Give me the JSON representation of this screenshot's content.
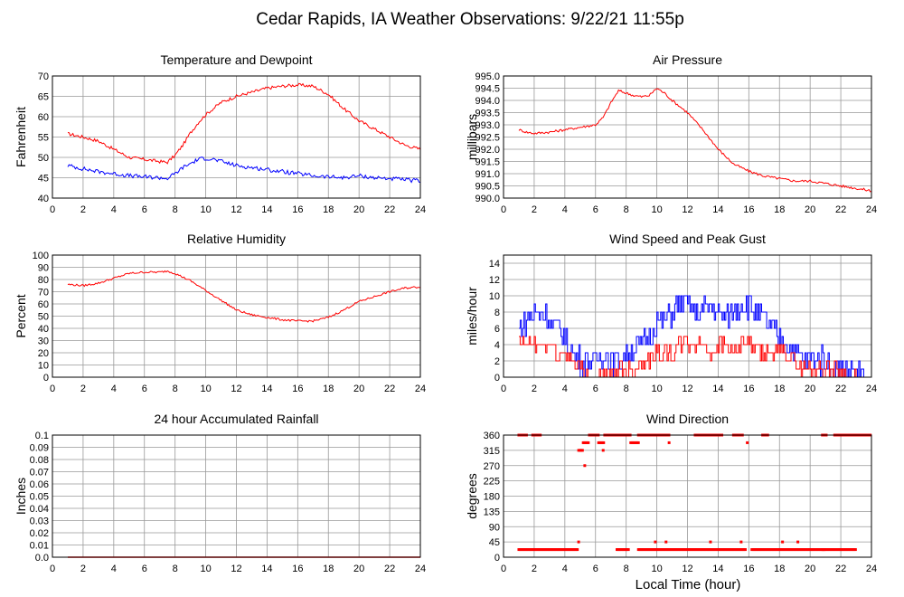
{
  "page": {
    "title": "Cedar Rapids, IA Weather Observations: 9/22/21 11:55p",
    "xaxis_label": "Local Time (hour)"
  },
  "colors": {
    "red": "#ff0000",
    "blue": "#0000ff",
    "grid": "#999999",
    "plot_bg": "#ffffff"
  },
  "chart_data": [
    {
      "id": "temp",
      "type": "line",
      "title": "Temperature and Dewpoint",
      "ylabel": "Fahrenheit",
      "xlim": [
        0,
        24
      ],
      "ylim": [
        40,
        70
      ],
      "x_ticks": [
        0,
        2,
        4,
        6,
        8,
        10,
        12,
        14,
        16,
        18,
        20,
        22,
        24
      ],
      "y_ticks": [
        40,
        45,
        50,
        55,
        60,
        65,
        70
      ],
      "y_tick_labels": [
        "40",
        "45",
        "50",
        "55",
        "60",
        "65",
        "70"
      ],
      "series": [
        {
          "color": "#ff0000",
          "jitter": 0.4,
          "x": [
            1.0,
            2.0,
            3.0,
            4.0,
            5.0,
            6.0,
            7.0,
            7.5,
            8.0,
            8.5,
            9.0,
            9.5,
            10.0,
            10.5,
            11.0,
            12.0,
            13.0,
            14.0,
            15.0,
            16.0,
            17.0,
            18.0,
            19.0,
            20.0,
            21.0,
            22.0,
            23.0,
            24.0
          ],
          "values": [
            55.8,
            55.0,
            54.0,
            52.0,
            50.0,
            49.5,
            49.0,
            48.8,
            50.5,
            53.0,
            56.0,
            58.5,
            60.5,
            62.0,
            63.5,
            65.0,
            66.0,
            67.0,
            67.5,
            67.8,
            67.5,
            65.5,
            62.0,
            59.0,
            57.0,
            55.0,
            53.0,
            52.0
          ]
        },
        {
          "color": "#0000ff",
          "jitter": 0.5,
          "x": [
            1.0,
            2.0,
            3.0,
            4.0,
            5.0,
            6.0,
            7.0,
            7.5,
            8.0,
            8.5,
            9.0,
            9.5,
            10.0,
            10.5,
            11.0,
            12.0,
            13.0,
            14.0,
            15.0,
            16.0,
            17.0,
            18.0,
            19.0,
            20.0,
            21.0,
            22.0,
            23.0,
            24.0
          ],
          "values": [
            48.0,
            47.2,
            46.5,
            46.0,
            45.5,
            45.2,
            45.0,
            44.8,
            46.0,
            47.5,
            48.5,
            49.5,
            49.8,
            49.5,
            49.0,
            48.0,
            47.5,
            47.0,
            46.5,
            46.0,
            45.5,
            45.2,
            45.0,
            45.5,
            45.0,
            44.8,
            44.5,
            44.2
          ]
        }
      ]
    },
    {
      "id": "pressure",
      "type": "line",
      "title": "Air Pressure",
      "ylabel": "millibars",
      "xlim": [
        0,
        24
      ],
      "ylim": [
        990.0,
        995.0
      ],
      "x_ticks": [
        0,
        2,
        4,
        6,
        8,
        10,
        12,
        14,
        16,
        18,
        20,
        22,
        24
      ],
      "y_ticks": [
        990.0,
        990.5,
        991.0,
        991.5,
        992.0,
        992.5,
        993.0,
        993.5,
        994.0,
        994.5,
        995.0
      ],
      "y_tick_labels": [
        "990.0",
        "990.5",
        "991.0",
        "991.5",
        "992.0",
        "992.5",
        "993.0",
        "993.5",
        "994.0",
        "994.5",
        "995.0"
      ],
      "series": [
        {
          "color": "#ff0000",
          "jitter": 0.05,
          "x": [
            1.0,
            1.5,
            2.0,
            3.0,
            4.0,
            5.0,
            6.0,
            6.5,
            7.0,
            7.5,
            8.0,
            8.5,
            9.0,
            9.5,
            10.0,
            10.5,
            11.0,
            12.0,
            13.0,
            14.0,
            15.0,
            16.0,
            17.0,
            18.0,
            19.0,
            20.0,
            21.0,
            22.0,
            23.0,
            24.0
          ],
          "values": [
            992.8,
            992.7,
            992.65,
            992.7,
            992.8,
            992.9,
            993.0,
            993.3,
            993.9,
            994.4,
            994.3,
            994.2,
            994.15,
            994.2,
            994.5,
            994.3,
            994.0,
            993.5,
            992.8,
            992.0,
            991.4,
            991.1,
            990.9,
            990.8,
            990.7,
            990.7,
            990.6,
            990.5,
            990.4,
            990.3
          ]
        }
      ]
    },
    {
      "id": "humidity",
      "type": "line",
      "title": "Relative Humidity",
      "ylabel": "Percent",
      "xlim": [
        0,
        24
      ],
      "ylim": [
        0,
        100
      ],
      "x_ticks": [
        0,
        2,
        4,
        6,
        8,
        10,
        12,
        14,
        16,
        18,
        20,
        22,
        24
      ],
      "y_ticks": [
        0,
        10,
        20,
        30,
        40,
        50,
        60,
        70,
        80,
        90,
        100
      ],
      "y_tick_labels": [
        "0",
        "10",
        "20",
        "30",
        "40",
        "50",
        "60",
        "70",
        "80",
        "90",
        "100"
      ],
      "series": [
        {
          "color": "#ff0000",
          "jitter": 0.8,
          "x": [
            1.0,
            2.0,
            3.0,
            4.0,
            5.0,
            6.0,
            7.0,
            7.5,
            8.0,
            9.0,
            10.0,
            11.0,
            12.0,
            13.0,
            14.0,
            15.0,
            16.0,
            17.0,
            18.0,
            19.0,
            20.0,
            21.0,
            22.0,
            23.0,
            24.0
          ],
          "values": [
            76,
            75,
            77,
            81,
            85,
            86,
            86,
            87,
            85,
            79,
            71,
            63,
            55,
            51,
            49,
            47,
            46,
            46,
            49,
            55,
            62,
            66,
            70,
            73,
            74
          ]
        }
      ]
    },
    {
      "id": "wind",
      "type": "line",
      "title": "Wind Speed and Peak Gust",
      "ylabel": "miles/hour",
      "xlim": [
        0,
        24
      ],
      "ylim": [
        0,
        15
      ],
      "x_ticks": [
        0,
        2,
        4,
        6,
        8,
        10,
        12,
        14,
        16,
        18,
        20,
        22,
        24
      ],
      "y_ticks": [
        0,
        2,
        4,
        6,
        8,
        10,
        12,
        14
      ],
      "y_tick_labels": [
        "0",
        "2",
        "4",
        "6",
        "8",
        "10",
        "12",
        "14"
      ],
      "series": [
        {
          "color": "#0000ff",
          "step": 1,
          "jitter": 1.6,
          "x": [
            1.0,
            1.5,
            2.0,
            2.5,
            3.0,
            3.5,
            4.0,
            4.5,
            5.0,
            5.5,
            6.0,
            6.5,
            7.0,
            7.5,
            8.0,
            8.5,
            9.0,
            9.5,
            10.0,
            10.5,
            11.0,
            11.5,
            12.0,
            12.5,
            13.0,
            13.5,
            14.0,
            14.5,
            15.0,
            15.5,
            16.0,
            16.5,
            17.0,
            17.5,
            18.0,
            18.5,
            19.0,
            19.5,
            20.0,
            20.5,
            21.0,
            21.5,
            22.0,
            22.5,
            23.0,
            23.5
          ],
          "values": [
            6,
            7,
            8,
            8,
            7,
            6,
            5,
            3,
            2,
            2,
            2,
            3,
            2,
            2,
            3,
            4,
            4,
            5,
            7,
            7,
            8,
            9,
            9,
            8,
            8,
            9,
            8,
            7,
            8,
            9,
            9,
            8,
            7,
            6,
            5,
            4,
            3,
            2,
            2,
            2,
            2,
            1,
            1,
            1,
            1,
            0
          ]
        },
        {
          "color": "#ff0000",
          "step": 1,
          "jitter": 1.0,
          "x": [
            1.0,
            1.5,
            2.0,
            2.5,
            3.0,
            3.5,
            4.0,
            4.5,
            5.0,
            5.5,
            6.0,
            6.5,
            7.0,
            7.5,
            8.0,
            8.5,
            9.0,
            9.5,
            10.0,
            10.5,
            11.0,
            11.5,
            12.0,
            12.5,
            13.0,
            13.5,
            14.0,
            14.5,
            15.0,
            15.5,
            16.0,
            16.5,
            17.0,
            17.5,
            18.0,
            18.5,
            19.0,
            19.5,
            20.0,
            20.5,
            21.0,
            21.5,
            22.0,
            22.5,
            23.0
          ],
          "values": [
            4,
            4,
            4,
            4,
            4,
            3,
            3,
            2,
            1,
            0,
            0,
            0,
            0,
            1,
            1,
            1,
            2,
            2,
            3,
            3,
            3,
            4,
            4,
            4,
            4,
            3,
            4,
            4,
            3,
            4,
            4,
            3,
            3,
            3,
            3,
            3,
            2,
            1,
            1,
            1,
            1,
            1,
            1,
            0,
            0
          ]
        }
      ]
    },
    {
      "id": "rain",
      "type": "line",
      "title": "24 hour Accumulated Rainfall",
      "ylabel": "Inches",
      "xlim": [
        0,
        24
      ],
      "ylim": [
        0,
        0.1
      ],
      "x_ticks": [
        0,
        2,
        4,
        6,
        8,
        10,
        12,
        14,
        16,
        18,
        20,
        22,
        24
      ],
      "y_ticks": [
        0,
        0.01,
        0.02,
        0.03,
        0.04,
        0.05,
        0.06,
        0.07,
        0.08,
        0.09,
        0.1
      ],
      "y_tick_labels": [
        "0.0",
        "0.01",
        "0.02",
        "0.03",
        "0.04",
        "0.05",
        "0.06",
        "0.07",
        "0.08",
        "0.09",
        "0.1"
      ],
      "series": [
        {
          "color": "#ff0000",
          "x": [
            1.0,
            24.0
          ],
          "values": [
            0.0,
            0.0
          ]
        }
      ]
    },
    {
      "id": "direction",
      "type": "scatter",
      "title": "Wind Direction",
      "ylabel": "degrees",
      "xlim": [
        0,
        24
      ],
      "ylim": [
        0,
        360
      ],
      "x_ticks": [
        0,
        2,
        4,
        6,
        8,
        10,
        12,
        14,
        16,
        18,
        20,
        22,
        24
      ],
      "y_ticks": [
        0,
        45,
        90,
        135,
        180,
        225,
        270,
        315,
        360
      ],
      "y_tick_labels": [
        "0",
        "45",
        "90",
        "135",
        "180",
        "225",
        "270",
        "315",
        "360"
      ],
      "series": [
        {
          "color": "#ff0000",
          "segments": [
            {
              "x0": 1.0,
              "x1": 4.9,
              "y": 22.5,
              "step": 0.083
            },
            {
              "x0": 1.0,
              "x1": 1.5,
              "y": 360,
              "step": 0.083
            },
            {
              "x0": 1.9,
              "x1": 2.4,
              "y": 360,
              "step": 0.083
            },
            {
              "x0": 4.9,
              "x1": 5.2,
              "y": 315,
              "step": 0.083
            },
            {
              "x0": 5.2,
              "x1": 5.6,
              "y": 337.5,
              "step": 0.083
            },
            {
              "x0": 5.6,
              "x1": 6.2,
              "y": 360,
              "step": 0.083
            },
            {
              "x0": 6.2,
              "x1": 6.6,
              "y": 337.5,
              "step": 0.083
            },
            {
              "x0": 6.6,
              "x1": 8.3,
              "y": 360,
              "step": 0.083
            },
            {
              "x0": 7.4,
              "x1": 8.2,
              "y": 22.5,
              "step": 0.083
            },
            {
              "x0": 8.3,
              "x1": 8.8,
              "y": 337.5,
              "step": 0.083
            },
            {
              "x0": 8.8,
              "x1": 10.8,
              "y": 360,
              "step": 0.083
            },
            {
              "x0": 8.8,
              "x1": 15.8,
              "y": 22.5,
              "step": 0.083
            },
            {
              "x0": 12.5,
              "x1": 14.3,
              "y": 360,
              "step": 0.083
            },
            {
              "x0": 15.0,
              "x1": 15.6,
              "y": 360,
              "step": 0.083
            },
            {
              "x0": 16.2,
              "x1": 21.0,
              "y": 22.5,
              "step": 0.083
            },
            {
              "x0": 16.9,
              "x1": 17.3,
              "y": 360,
              "step": 0.083
            },
            {
              "x0": 20.8,
              "x1": 23.0,
              "y": 22.5,
              "step": 0.083
            },
            {
              "x0": 20.8,
              "x1": 21.1,
              "y": 360,
              "step": 0.083
            },
            {
              "x0": 21.6,
              "x1": 24.0,
              "y": 360,
              "step": 0.083
            }
          ],
          "points": [
            [
              4.9,
              45
            ],
            [
              5.3,
              270
            ],
            [
              6.5,
              315
            ],
            [
              9.9,
              45
            ],
            [
              10.6,
              45
            ],
            [
              10.8,
              337.5
            ],
            [
              13.5,
              45
            ],
            [
              15.5,
              45
            ],
            [
              15.9,
              337.5
            ],
            [
              18.2,
              45
            ],
            [
              19.2,
              45
            ]
          ]
        }
      ]
    }
  ]
}
